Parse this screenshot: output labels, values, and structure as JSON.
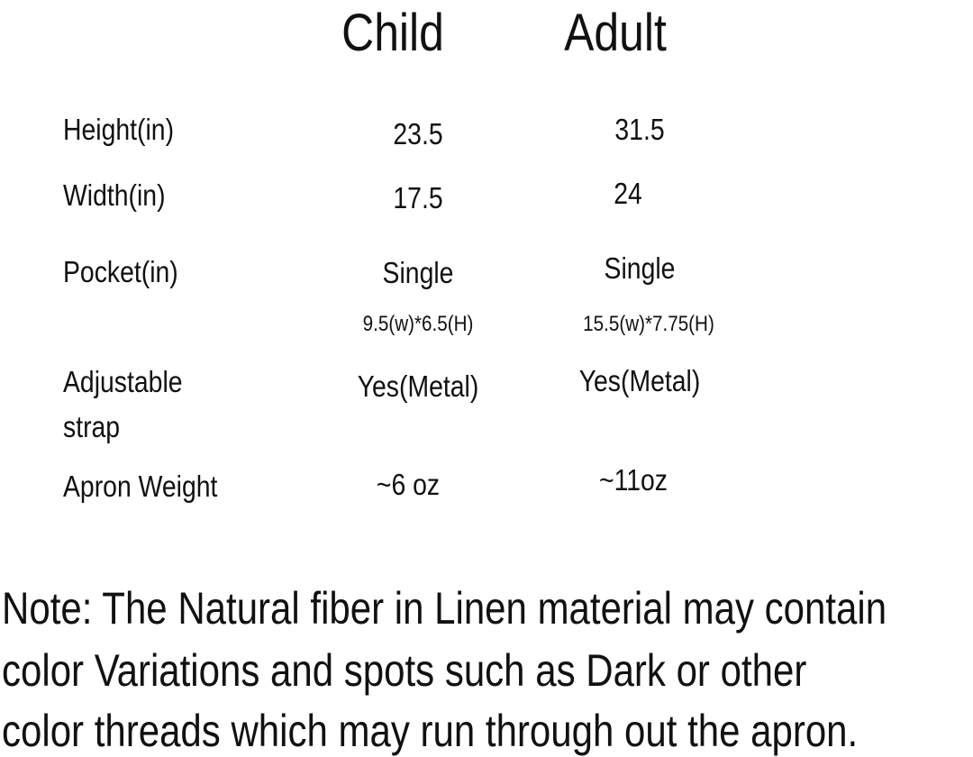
{
  "headers": {
    "child": "Child",
    "adult": "Adult"
  },
  "rows": [
    {
      "label": "Height(in)",
      "child": "23.5",
      "adult": "31.5"
    },
    {
      "label": "Width(in)",
      "child": "17.5",
      "adult": "24"
    },
    {
      "label": "Pocket(in)",
      "child": "Single",
      "adult": "Single",
      "child_sub": "9.5(w)*6.5(H)",
      "adult_sub": "15.5(w)*7.75(H)"
    },
    {
      "label": "Adjustable",
      "label2": "strap",
      "child": "Yes(Metal)",
      "adult": "Yes(Metal)"
    },
    {
      "label": "Apron Weight",
      "child": "~6 oz",
      "adult": "~11oz"
    }
  ],
  "note": {
    "lines": [
      "Note: The Natural fiber in Linen material may contain",
      "color Variations and spots such as Dark or other",
      "color threads which may run through out the apron."
    ]
  }
}
